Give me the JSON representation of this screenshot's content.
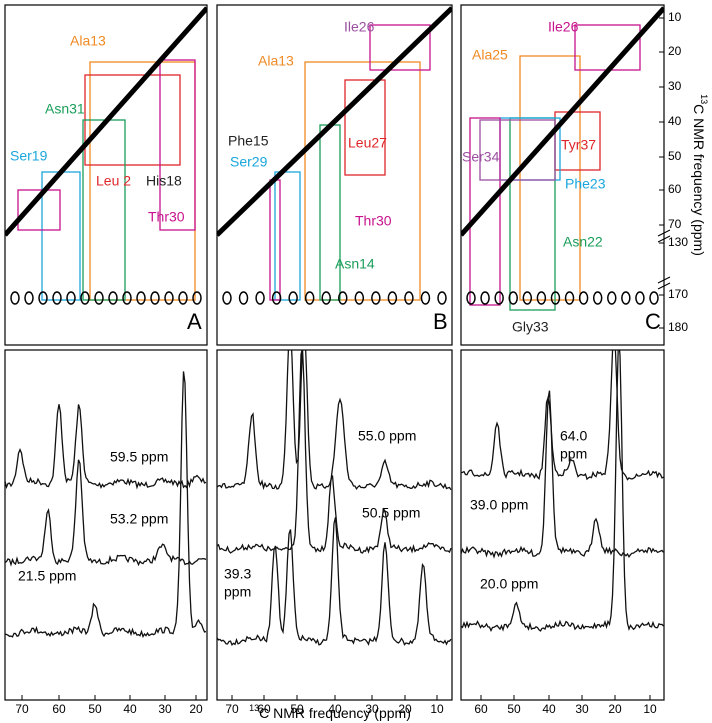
{
  "panels": [
    {
      "label": "A",
      "assignments": [
        {
          "text": "Ala13",
          "color": "#f08a24"
        },
        {
          "text": "Asn31",
          "color": "#1a9e5a"
        },
        {
          "text": "Ser19",
          "color": "#1aa6dc"
        },
        {
          "text": "Leu 2",
          "color": "#e0262a"
        },
        {
          "text": "His18",
          "color": "#222222"
        },
        {
          "text": "Thr30",
          "color": "#c7128d"
        }
      ],
      "slices": [
        {
          "lines": [
            "59.5 ppm"
          ]
        },
        {
          "lines": [
            "53.2 ppm"
          ]
        },
        {
          "lines": [
            "21.5 ppm"
          ]
        }
      ],
      "x_ticks": [
        "70",
        "60",
        "50",
        "40",
        "30",
        "20"
      ]
    },
    {
      "label": "B",
      "assignments": [
        {
          "text": "Ile26",
          "color": "#9b4fa0"
        },
        {
          "text": "Ala13",
          "color": "#f08a24"
        },
        {
          "text": "Phe15",
          "color": "#222222"
        },
        {
          "text": "Leu27",
          "color": "#e0262a"
        },
        {
          "text": "Ser29",
          "color": "#1aa6dc"
        },
        {
          "text": "Thr30",
          "color": "#c7128d"
        },
        {
          "text": "Asn14",
          "color": "#1a9e5a"
        }
      ],
      "slices": [
        {
          "lines": [
            "55.0 ppm"
          ]
        },
        {
          "lines": [
            "50.5 ppm"
          ]
        },
        {
          "lines": [
            "39.3",
            "ppm"
          ]
        }
      ],
      "x_ticks": [
        "70",
        "60",
        "50",
        "40",
        "30",
        "20",
        "10"
      ]
    },
    {
      "label": "C",
      "assignments": [
        {
          "text": "Ile26",
          "color": "#c7128d"
        },
        {
          "text": "Ala25",
          "color": "#f08a24"
        },
        {
          "text": "Ser34",
          "color": "#9b4fa0"
        },
        {
          "text": "Tyr37",
          "color": "#e0262a"
        },
        {
          "text": "Phe23",
          "color": "#1aa6dc"
        },
        {
          "text": "Asn22",
          "color": "#1a9e5a"
        },
        {
          "text": "Gly33",
          "color": "#222222"
        }
      ],
      "slices": [
        {
          "lines": [
            "64.0",
            "ppm"
          ]
        },
        {
          "lines": [
            "39.0 ppm"
          ]
        },
        {
          "lines": [
            "20.0 ppm"
          ]
        }
      ],
      "x_ticks": [
        "60",
        "50",
        "40",
        "30",
        "20",
        "10"
      ]
    }
  ],
  "right_axis": {
    "title": {
      "isotope": "13",
      "text": "C NMR frequency (ppm)"
    },
    "ticks": [
      "10",
      "20",
      "30",
      "40",
      "50",
      "60",
      "70",
      "130",
      "170",
      "180"
    ]
  },
  "bottom_axis": {
    "title": {
      "isotope": "13",
      "text": "C NMR frequency (ppm)"
    }
  }
}
